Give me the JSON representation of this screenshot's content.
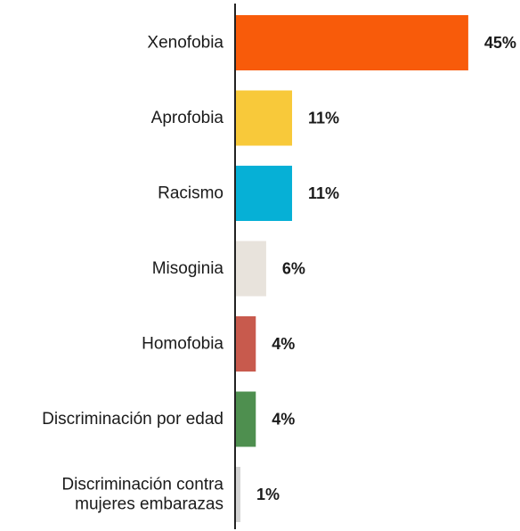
{
  "chart_data": {
    "type": "bar",
    "orientation": "horizontal",
    "categories": [
      [
        "Xenofobia"
      ],
      [
        "Aprofobia"
      ],
      [
        "Racismo"
      ],
      [
        "Misoginia"
      ],
      [
        "Homofobia"
      ],
      [
        "Discriminación por edad"
      ],
      [
        "Discriminación contra",
        "mujeres embarazas"
      ]
    ],
    "values": [
      45,
      11,
      11,
      6,
      4,
      4,
      1
    ],
    "value_labels": [
      "45%",
      "11%",
      "11%",
      "6%",
      "4%",
      "4%",
      "1%"
    ],
    "colors": [
      "#f85b0a",
      "#f8c93a",
      "#06b0d6",
      "#e8e3dc",
      "#c85a4d",
      "#4e8f4f",
      "#d3d3d3"
    ],
    "unit": "%",
    "title": "",
    "xlabel": "",
    "ylabel": "",
    "grid": false,
    "legend": false
  }
}
